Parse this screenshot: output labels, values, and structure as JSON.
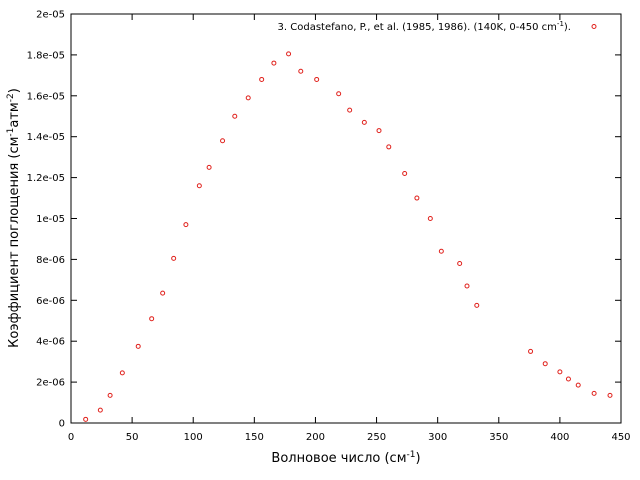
{
  "chart_data": {
    "type": "scatter",
    "xlabel": "Волновое число (см",
    "xlabel_sup": "-1",
    "xlabel_tail": ")",
    "ylabel": "Коэффициент поглощения (см",
    "ylabel_sup1": "-1",
    "ylabel_mid": "атм",
    "ylabel_sup2": "-2",
    "ylabel_tail": ")",
    "xlim": [
      0,
      450
    ],
    "ylim": [
      0,
      2e-05
    ],
    "x_ticks": [
      0,
      50,
      100,
      150,
      200,
      250,
      300,
      350,
      400,
      450
    ],
    "x_tick_labels": [
      "0",
      "50",
      "100",
      "150",
      "200",
      "250",
      "300",
      "350",
      "400",
      "450"
    ],
    "y_ticks": [
      0,
      2e-06,
      4e-06,
      6e-06,
      8e-06,
      1e-05,
      1.2e-05,
      1.4e-05,
      1.6e-05,
      1.8e-05,
      2e-05
    ],
    "y_tick_labels": [
      "0",
      "2e-06",
      "4e-06",
      "6e-06",
      "8e-06",
      "1e-05",
      "1.2e-05",
      "1.4e-05",
      "1.6e-05",
      "1.8e-05",
      "2e-05"
    ],
    "grid": false,
    "legend_position": "top-right",
    "marker_color": "#e0201b",
    "series": [
      {
        "name": "3. Codastefano, P., et al. (1985, 1986). (140K, 0-450 cm",
        "name_sup": "-1",
        "name_tail": ").",
        "x": [
          12,
          24,
          32,
          42,
          55,
          66,
          75,
          84,
          94,
          105,
          113,
          124,
          134,
          145,
          156,
          166,
          178,
          188,
          201,
          219,
          228,
          240,
          252,
          260,
          273,
          283,
          294,
          303,
          318,
          324,
          332,
          376,
          388,
          400,
          407,
          415,
          428,
          441
        ],
        "y": [
          1.8e-07,
          6.3e-07,
          1.35e-06,
          2.45e-06,
          3.75e-06,
          5.1e-06,
          6.35e-06,
          8.05e-06,
          9.7e-06,
          1.16e-05,
          1.25e-05,
          1.38e-05,
          1.5e-05,
          1.59e-05,
          1.68e-05,
          1.76e-05,
          1.805e-05,
          1.72e-05,
          1.68e-05,
          1.61e-05,
          1.53e-05,
          1.47e-05,
          1.43e-05,
          1.35e-05,
          1.22e-05,
          1.1e-05,
          1e-05,
          8.4e-06,
          7.8e-06,
          6.7e-06,
          5.75e-06,
          3.5e-06,
          2.9e-06,
          2.5e-06,
          2.15e-06,
          1.85e-06,
          1.45e-06,
          1.35e-06
        ]
      }
    ]
  }
}
